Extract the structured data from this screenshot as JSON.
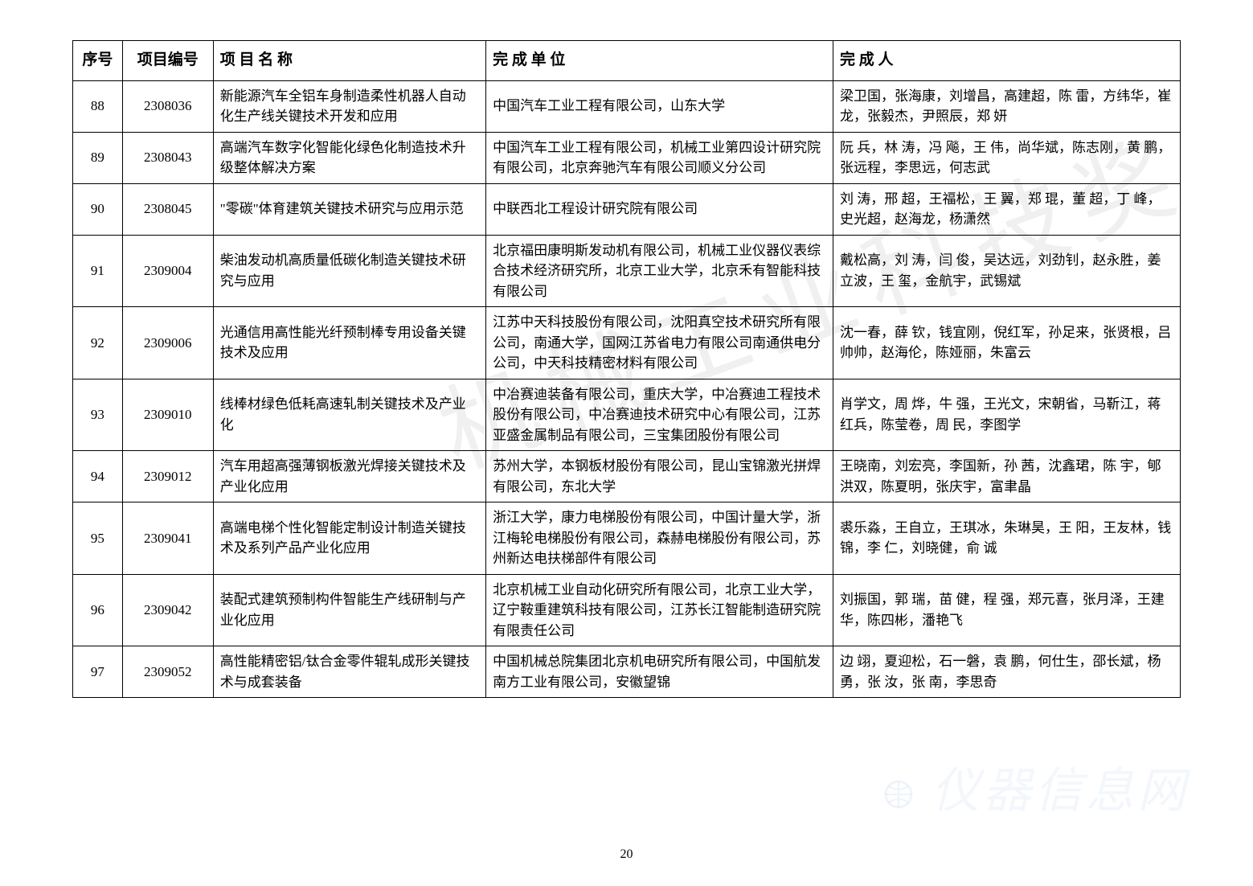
{
  "headers": {
    "seq": "序号",
    "id": "项目编号",
    "name": "项 目 名 称",
    "unit": "完 成 单 位",
    "people": "完  成  人"
  },
  "rows": [
    {
      "seq": "88",
      "id": "2308036",
      "name": "新能源汽车全铝车身制造柔性机器人自动化生产线关键技术开发和应用",
      "unit": "中国汽车工业工程有限公司，山东大学",
      "people": "梁卫国，张海康，刘增昌，高建超，陈 雷，方纬华，崔 龙，张毅杰，尹照辰，郑 妍"
    },
    {
      "seq": "89",
      "id": "2308043",
      "name": "高端汽车数字化智能化绿色化制造技术升级整体解决方案",
      "unit": "中国汽车工业工程有限公司，机械工业第四设计研究院有限公司，北京奔驰汽车有限公司顺义分公司",
      "people": "阮 兵，林 涛，冯 飚，王 伟，尚华斌，陈志刚，黄 鹏，张远程，李思远，何志武"
    },
    {
      "seq": "90",
      "id": "2308045",
      "name": "\"零碳\"体育建筑关键技术研究与应用示范",
      "unit": "中联西北工程设计研究院有限公司",
      "people": "刘 涛，邢 超，王福松，王 翼，郑 琨，董 超，丁 峰，史光超，赵海龙，杨潇然"
    },
    {
      "seq": "91",
      "id": "2309004",
      "name": "柴油发动机高质量低碳化制造关键技术研究与应用",
      "unit": "北京福田康明斯发动机有限公司，机械工业仪器仪表综合技术经济研究所，北京工业大学，北京禾有智能科技有限公司",
      "people": "戴松高，刘 涛，闫 俊，吴达远，刘劲钊，赵永胜，姜立波，王 玺，金航宇，武锡斌"
    },
    {
      "seq": "92",
      "id": "2309006",
      "name": "光通信用高性能光纤预制棒专用设备关键技术及应用",
      "unit": "江苏中天科技股份有限公司，沈阳真空技术研究所有限公司，南通大学，国网江苏省电力有限公司南通供电分公司，中天科技精密材料有限公司",
      "people": "沈一春，薛 钦，钱宜刚，倪红军，孙足来，张贤根，吕帅帅，赵海伦，陈娅丽，朱富云"
    },
    {
      "seq": "93",
      "id": "2309010",
      "name": "线棒材绿色低耗高速轧制关键技术及产业化",
      "unit": "中冶赛迪装备有限公司，重庆大学，中冶赛迪工程技术股份有限公司，中冶赛迪技术研究中心有限公司，江苏亚盛金属制品有限公司，三宝集团股份有限公司",
      "people": "肖学文，周 烨，牛 强，王光文，宋朝省，马靳江，蒋红兵，陈莹卷，周 民，李图学"
    },
    {
      "seq": "94",
      "id": "2309012",
      "name": "汽车用超高强薄钢板激光焊接关键技术及产业化应用",
      "unit": "苏州大学，本钢板材股份有限公司，昆山宝锦激光拼焊有限公司，东北大学",
      "people": "王晓南，刘宏亮，李国新，孙 茜，沈鑫珺，陈 宇，郇洪双，陈夏明，张庆宇，富聿晶"
    },
    {
      "seq": "95",
      "id": "2309041",
      "name": "高端电梯个性化智能定制设计制造关键技术及系列产品产业化应用",
      "unit": "浙江大学，康力电梯股份有限公司，中国计量大学，浙江梅轮电梯股份有限公司，森赫电梯股份有限公司，苏州新达电扶梯部件有限公司",
      "people": "裘乐淼，王自立，王琪冰，朱琳昊，王 阳，王友林，钱 锦，李 仁，刘晓健，俞 诚"
    },
    {
      "seq": "96",
      "id": "2309042",
      "name": "装配式建筑预制构件智能生产线研制与产业化应用",
      "unit": "北京机械工业自动化研究所有限公司，北京工业大学，辽宁鞍重建筑科技有限公司，江苏长江智能制造研究院有限责任公司",
      "people": "刘振国，郭 瑞，苗 健，程 强，郑元喜，张月泽，王建华，陈四彬，潘艳飞"
    },
    {
      "seq": "97",
      "id": "2309052",
      "name": "高性能精密铝/钛合金零件辊轧成形关键技术与成套装备",
      "unit": "中国机械总院集团北京机电研究所有限公司，中国航发南方工业有限公司，安徽望锦",
      "people": "边 翊，夏迎松，石一磐，袁 鹏，何仕生，邵长斌，杨 勇，张 汝，张 南，李思奇"
    }
  ],
  "page_number": "20",
  "watermark_main": "机械工业科技奖",
  "watermark_corner": "仪器信息网"
}
